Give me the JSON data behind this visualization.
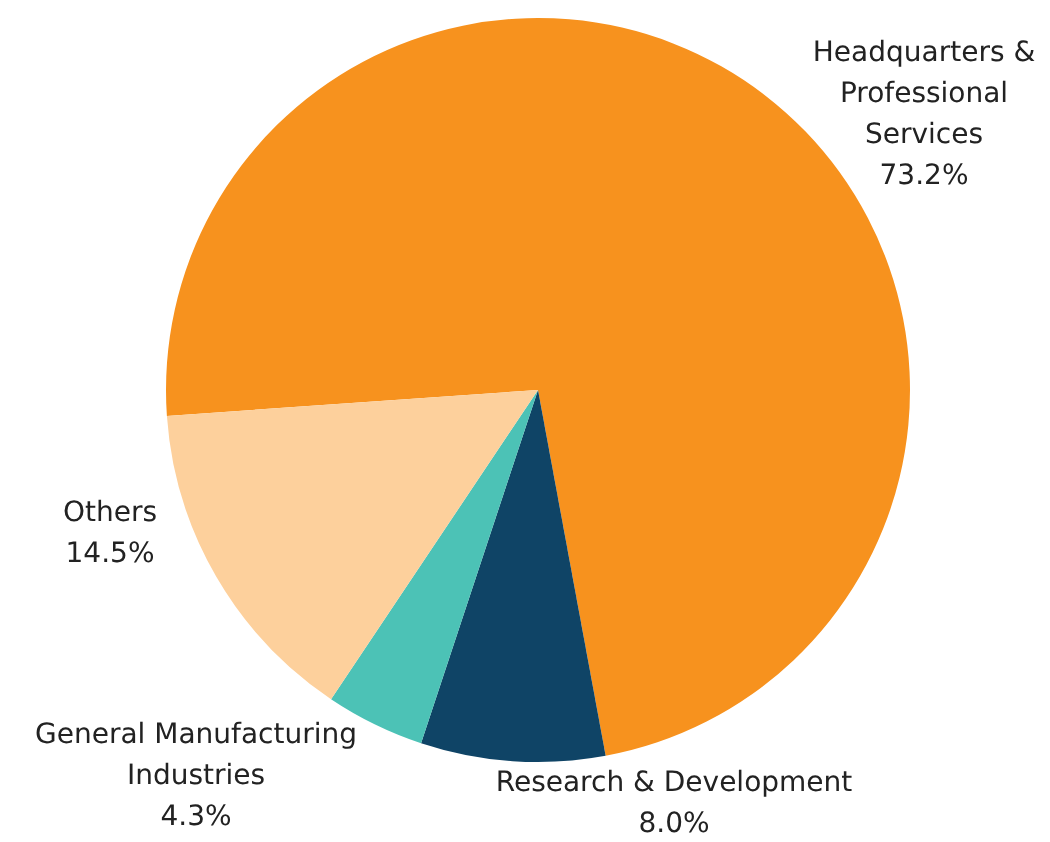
{
  "chart_data": {
    "type": "pie",
    "categories": [
      "Headquarters & Professional Services",
      "Research & Development",
      "General Manufacturing Industries",
      "Others"
    ],
    "values": [
      73.2,
      8.0,
      4.3,
      14.5
    ],
    "colors": [
      "#f7921e",
      "#0f4466",
      "#4cc2b6",
      "#fdd09c"
    ],
    "value_labels": [
      "73.2%",
      "8.0%",
      "4.3%",
      "14.5%"
    ],
    "legend": false
  }
}
